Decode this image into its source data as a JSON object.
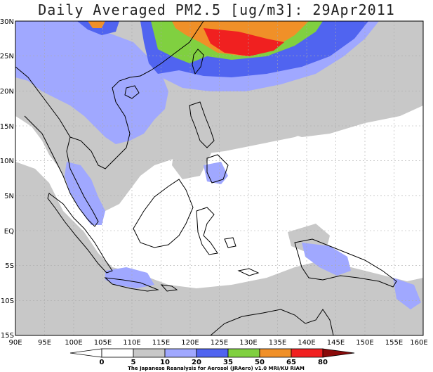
{
  "title": "Daily Averaged PM2.5 [ug/m3]: 29Apr2011",
  "credit": "The Japanese Reanalysis for Aerosol (JRAero) v1.0 MRI/KU RIAM",
  "colors": {
    "c5_10": "#c8c8c8",
    "c10_20": "#a0a8ff",
    "c20_35": "#5064f0",
    "c35_50": "#80d040",
    "c50_65": "#f09028",
    "c65_80": "#f02020",
    "c80_plus": "#8a0a0a",
    "land_outline": "#000000",
    "grid": "#aaaaaa"
  },
  "map": {
    "lat_labels": [
      "30N",
      "25N",
      "20N",
      "15N",
      "10N",
      "5N",
      "EQ",
      "5S",
      "10S",
      "15S"
    ],
    "lon_labels": [
      "90E",
      "95E",
      "100E",
      "105E",
      "110E",
      "115E",
      "120E",
      "125E",
      "130E",
      "135E",
      "140E",
      "145E",
      "150E",
      "155E",
      "160E"
    ]
  },
  "colorbar": {
    "labels": [
      "0",
      "5",
      "10",
      "20",
      "35",
      "50",
      "65",
      "80"
    ]
  }
}
